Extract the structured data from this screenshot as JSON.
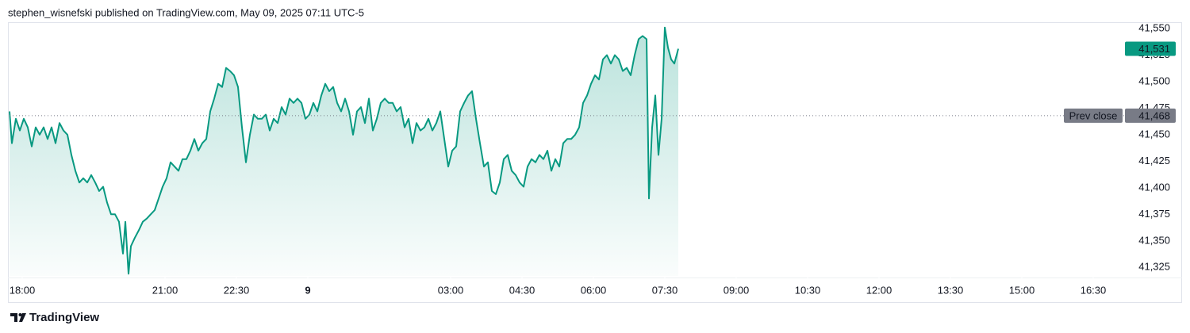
{
  "chart_data": {
    "type": "area",
    "title": "stephen_wisnefski published on TradingView.com, May 09, 2025 07:11 UTC-5",
    "brand": "TradingView",
    "color": "#089981",
    "x": [
      -16,
      -13,
      -8,
      -3,
      2,
      7,
      12,
      17,
      22,
      27,
      32,
      37,
      42,
      47,
      52,
      57,
      62,
      67,
      72,
      77,
      82,
      87,
      92,
      97,
      102,
      107,
      112,
      117,
      122,
      127,
      130,
      134,
      137,
      142,
      147,
      152,
      157,
      162,
      167,
      172,
      177,
      182,
      187,
      192,
      197,
      202,
      207,
      212,
      217,
      222,
      227,
      232,
      237,
      242,
      247,
      252,
      257,
      262,
      267,
      272,
      277,
      282,
      287,
      292,
      297,
      302,
      307,
      312,
      317,
      322,
      327,
      332,
      337,
      342,
      347,
      352,
      357,
      362,
      367,
      372,
      377,
      382,
      387,
      392,
      397,
      402,
      407,
      412,
      417,
      422,
      427,
      432,
      437,
      442,
      447,
      452,
      457,
      462,
      467,
      472,
      477,
      482,
      487,
      492,
      497,
      502,
      507,
      512,
      517,
      522,
      527,
      532,
      537,
      542,
      547,
      552,
      557,
      562,
      567,
      572,
      577,
      582,
      587,
      592,
      597,
      602,
      607,
      612,
      617,
      622,
      627,
      632,
      637,
      642,
      647,
      652,
      657,
      662,
      667,
      672,
      677,
      682,
      687,
      692,
      697,
      702,
      707,
      712,
      717,
      722,
      727,
      732,
      737,
      742,
      747,
      752,
      757,
      762,
      767,
      772,
      777,
      782,
      787,
      790,
      794,
      798,
      802,
      806,
      810,
      814,
      818,
      822,
      827
    ],
    "values": [
      41472,
      41442,
      41465,
      41454,
      41465,
      41457,
      41439,
      41457,
      41450,
      41457,
      41446,
      41457,
      41442,
      41461,
      41454,
      41450,
      41431,
      41416,
      41405,
      41409,
      41405,
      41412,
      41405,
      41397,
      41401,
      41386,
      41375,
      41375,
      41368,
      41338,
      41368,
      41319,
      41345,
      41353,
      41360,
      41368,
      41371,
      41375,
      41379,
      41390,
      41401,
      41409,
      41424,
      41420,
      41416,
      41427,
      41427,
      41435,
      41446,
      41435,
      41442,
      41446,
      41472,
      41484,
      41498,
      41495,
      41513,
      41510,
      41506,
      41495,
      41457,
      41424,
      41450,
      41469,
      41465,
      41465,
      41469,
      41454,
      41465,
      41461,
      41476,
      41469,
      41484,
      41480,
      41484,
      41480,
      41465,
      41469,
      41480,
      41472,
      41487,
      41498,
      41491,
      41495,
      41480,
      41472,
      41484,
      41472,
      41450,
      41472,
      41476,
      41461,
      41484,
      41454,
      41465,
      41480,
      41484,
      41480,
      41480,
      41472,
      41476,
      41457,
      41465,
      41442,
      41461,
      41454,
      41457,
      41465,
      41454,
      41461,
      41472,
      41446,
      41420,
      41435,
      41439,
      41472,
      41480,
      41487,
      41491,
      41465,
      41442,
      41420,
      41424,
      41397,
      41394,
      41405,
      41427,
      41431,
      41416,
      41412,
      41405,
      41401,
      41420,
      41427,
      41424,
      41431,
      41427,
      41435,
      41416,
      41427,
      41420,
      41442,
      41446,
      41446,
      41450,
      41457,
      41480,
      41487,
      41498,
      41506,
      41502,
      41521,
      41525,
      41517,
      41525,
      41521,
      41510,
      41513,
      41506,
      41525,
      41540,
      41543,
      41540,
      41390,
      41457,
      41487,
      41431,
      41465,
      41551,
      41532,
      41521,
      41517,
      41531
    ],
    "xlim": [
      -16,
      1386
    ],
    "xticks": [
      {
        "value": 0,
        "label": "18:00"
      },
      {
        "value": 180,
        "label": "21:00"
      },
      {
        "value": 270,
        "label": "22:30"
      },
      {
        "value": 360,
        "label": "9"
      },
      {
        "value": 540,
        "label": "03:00"
      },
      {
        "value": 630,
        "label": "04:30"
      },
      {
        "value": 720,
        "label": "06:00"
      },
      {
        "value": 810,
        "label": "07:30"
      },
      {
        "value": 900,
        "label": "09:00"
      },
      {
        "value": 990,
        "label": "10:30"
      },
      {
        "value": 1080,
        "label": "12:00"
      },
      {
        "value": 1170,
        "label": "13:30"
      },
      {
        "value": 1260,
        "label": "15:00"
      },
      {
        "value": 1350,
        "label": "16:30"
      }
    ],
    "ylim": [
      41317,
      41556
    ],
    "yticks": [
      {
        "value": 41325,
        "label": "41,325"
      },
      {
        "value": 41350,
        "label": "41,350"
      },
      {
        "value": 41375,
        "label": "41,375"
      },
      {
        "value": 41400,
        "label": "41,400"
      },
      {
        "value": 41425,
        "label": "41,425"
      },
      {
        "value": 41450,
        "label": "41,450"
      },
      {
        "value": 41475,
        "label": "41,475"
      },
      {
        "value": 41500,
        "label": "41,500"
      },
      {
        "value": 41525,
        "label": "41,525"
      },
      {
        "value": 41550,
        "label": "41,550"
      }
    ],
    "prev_close": {
      "label": "Prev close",
      "value": 41468,
      "value_label": "41,468",
      "color": "#787b86"
    },
    "last_price": {
      "value": 41531,
      "value_label": "41,531",
      "color": "#089981"
    }
  }
}
